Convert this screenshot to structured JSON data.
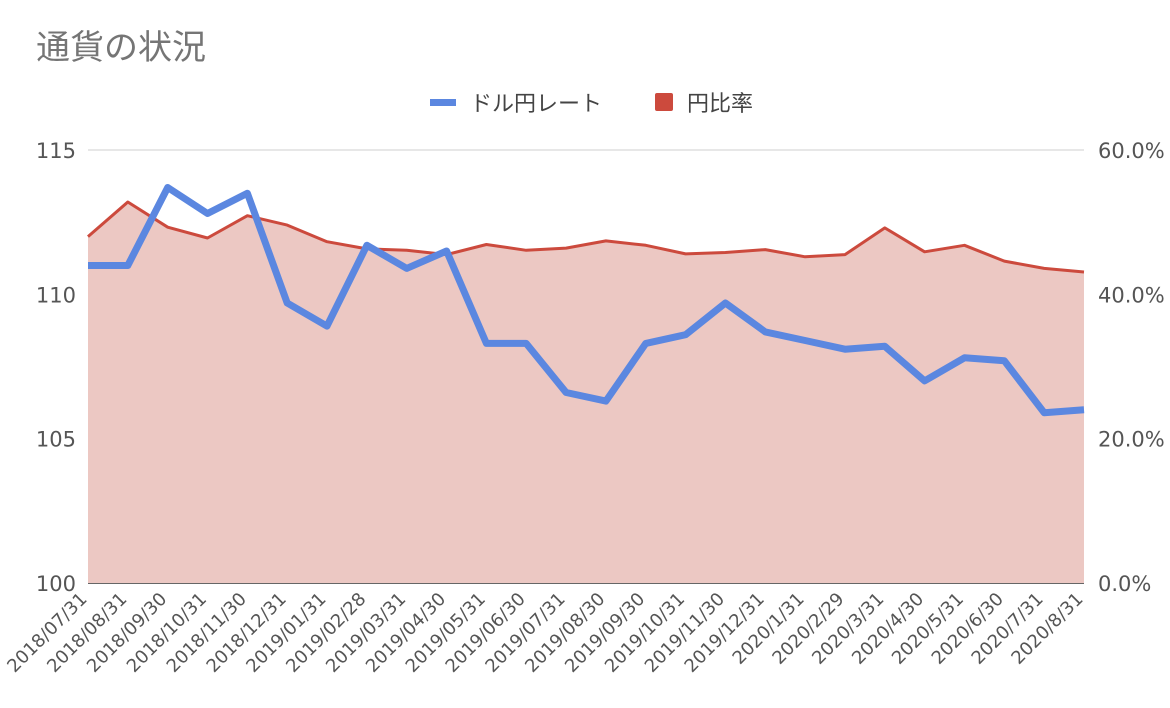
{
  "chart_data": {
    "type": "line",
    "title": "通貨の状況",
    "categories": [
      "2018/07/31",
      "2018/08/31",
      "2018/09/30",
      "2018/10/31",
      "2018/11/30",
      "2018/12/31",
      "2019/01/31",
      "2019/02/28",
      "2019/03/31",
      "2019/04/30",
      "2019/05/31",
      "2019/06/30",
      "2019/07/31",
      "2019/08/30",
      "2019/09/30",
      "2019/10/31",
      "2019/11/30",
      "2019/12/31",
      "2020/1/31",
      "2020/2/29",
      "2020/3/31",
      "2020/4/30",
      "2020/5/31",
      "2020/6/30",
      "2020/7/31",
      "2020/8/31"
    ],
    "series": [
      {
        "name": "ドル円レート",
        "axis": "left",
        "style": "line",
        "color": "#5b87e0",
        "values": [
          111.0,
          111.0,
          113.7,
          112.8,
          113.5,
          109.7,
          108.9,
          111.7,
          110.9,
          111.5,
          108.3,
          108.3,
          106.6,
          106.3,
          108.3,
          108.6,
          109.7,
          108.7,
          108.4,
          108.1,
          108.2,
          107.0,
          107.8,
          107.7,
          105.9,
          106.0
        ]
      },
      {
        "name": "円比率",
        "axis": "right",
        "style": "area",
        "color": "#cc4a3d",
        "fill": "#ecc8c3",
        "values": [
          48.0,
          52.8,
          49.3,
          47.8,
          50.9,
          49.6,
          47.3,
          46.3,
          46.1,
          45.5,
          46.9,
          46.1,
          46.4,
          47.4,
          46.8,
          45.6,
          45.8,
          46.2,
          45.2,
          45.5,
          49.2,
          45.9,
          46.8,
          44.6,
          43.6,
          43.1
        ]
      }
    ],
    "left_axis": {
      "ylim": [
        100,
        115
      ],
      "ticks": [
        "100",
        "105",
        "110",
        "115"
      ]
    },
    "right_axis": {
      "ylim": [
        0,
        60
      ],
      "ticks": [
        "0.0%",
        "20.0%",
        "40.0%",
        "60.0%"
      ]
    },
    "grid": true,
    "legend": "top-center"
  }
}
